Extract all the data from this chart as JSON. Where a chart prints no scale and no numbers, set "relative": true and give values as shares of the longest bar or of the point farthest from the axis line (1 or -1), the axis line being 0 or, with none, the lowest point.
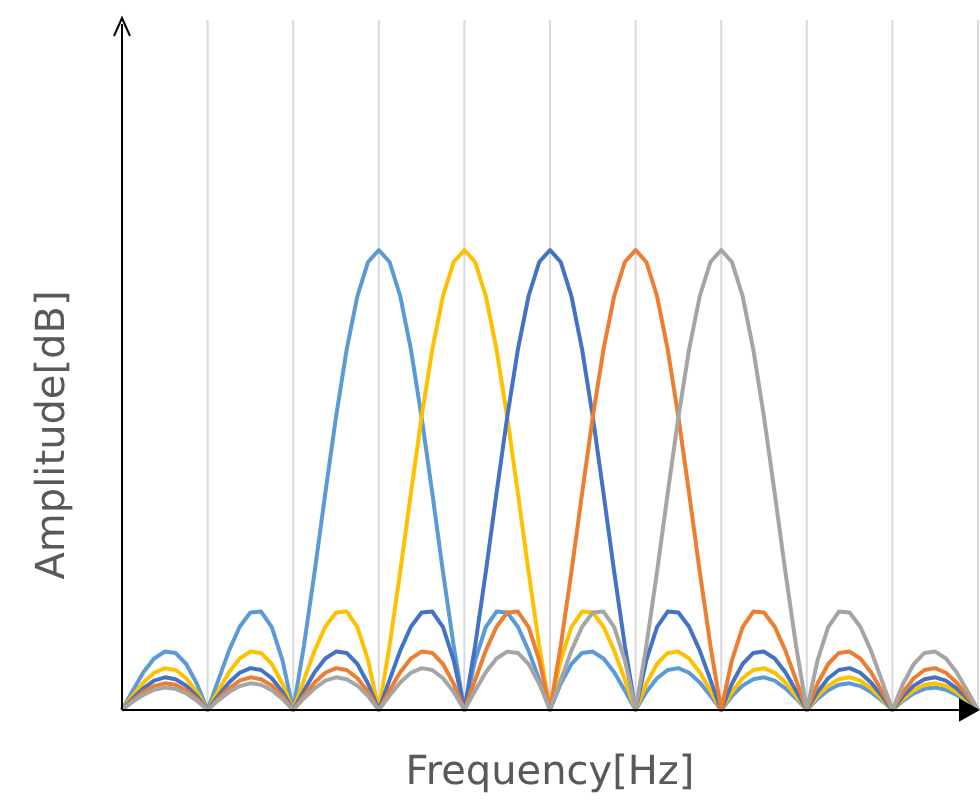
{
  "chart_data": {
    "type": "line",
    "relative": true,
    "xlabel": "Frequency[Hz]",
    "ylabel": "Amplitude[dB]",
    "categories": [
      null,
      null,
      null,
      null,
      null,
      null,
      null,
      null,
      null,
      null,
      null,
      null,
      null,
      null,
      null,
      null,
      null,
      null,
      null,
      null,
      null,
      null,
      null,
      null,
      null,
      null,
      null,
      null,
      null,
      null,
      null,
      null,
      null,
      null,
      null,
      null,
      null,
      null,
      null,
      null,
      null,
      null,
      null,
      null,
      null,
      null,
      null,
      null,
      null,
      null,
      null,
      null,
      null,
      null,
      null,
      null,
      null,
      null,
      null,
      null,
      null,
      null,
      null,
      null,
      null,
      null,
      null,
      null,
      null,
      null,
      null,
      null,
      null,
      null,
      null,
      null,
      null,
      null,
      null,
      null,
      null
    ],
    "grid": "x",
    "marker": "none",
    "line_style": "solid",
    "series": [
      {
        "color": "#5b9bd5",
        "values": [
          0,
          0.042,
          0.082,
          0.112,
          0.127,
          0.124,
          0.1,
          0.057,
          0,
          0.065,
          0.129,
          0.181,
          0.212,
          0.214,
          0.18,
          0.108,
          0,
          0.139,
          0.3,
          0.471,
          0.637,
          0.784,
          0.9,
          0.974,
          1,
          0.974,
          0.9,
          0.784,
          0.637,
          0.471,
          0.3,
          0.139,
          0,
          0.108,
          0.18,
          0.214,
          0.212,
          0.181,
          0.129,
          0.065,
          0,
          0.057,
          0.1,
          0.124,
          0.127,
          0.112,
          0.082,
          0.042,
          0,
          0.039,
          0.069,
          0.087,
          0.091,
          0.081,
          0.06,
          0.031,
          0,
          0.03,
          0.053,
          0.067,
          0.071,
          0.064,
          0.047,
          0.025,
          0,
          0.024,
          0.043,
          0.055,
          0.058,
          0.052,
          0.039,
          0.021,
          0,
          0.02,
          0.036,
          0.046,
          0.049,
          0.044,
          0.033,
          0.018,
          0
        ]
      },
      {
        "color": "#ffc000",
        "values": [
          0,
          0.031,
          0.06,
          0.081,
          0.091,
          0.087,
          0.069,
          0.039,
          0,
          0.042,
          0.082,
          0.112,
          0.127,
          0.124,
          0.1,
          0.057,
          0,
          0.065,
          0.129,
          0.181,
          0.212,
          0.214,
          0.18,
          0.108,
          0,
          0.139,
          0.3,
          0.471,
          0.637,
          0.784,
          0.9,
          0.974,
          1,
          0.974,
          0.9,
          0.784,
          0.637,
          0.471,
          0.3,
          0.139,
          0,
          0.108,
          0.18,
          0.214,
          0.212,
          0.181,
          0.129,
          0.065,
          0,
          0.057,
          0.1,
          0.124,
          0.127,
          0.112,
          0.082,
          0.042,
          0,
          0.039,
          0.069,
          0.087,
          0.091,
          0.081,
          0.06,
          0.031,
          0,
          0.03,
          0.053,
          0.067,
          0.071,
          0.064,
          0.047,
          0.025,
          0,
          0.024,
          0.043,
          0.055,
          0.058,
          0.052,
          0.039,
          0.021,
          0
        ]
      },
      {
        "color": "#4472c4",
        "values": [
          0,
          0.025,
          0.047,
          0.064,
          0.071,
          0.067,
          0.053,
          0.03,
          0,
          0.031,
          0.06,
          0.081,
          0.091,
          0.087,
          0.069,
          0.039,
          0,
          0.042,
          0.082,
          0.112,
          0.127,
          0.124,
          0.1,
          0.057,
          0,
          0.065,
          0.129,
          0.181,
          0.212,
          0.214,
          0.18,
          0.108,
          0,
          0.139,
          0.3,
          0.471,
          0.637,
          0.784,
          0.9,
          0.974,
          1,
          0.974,
          0.9,
          0.784,
          0.637,
          0.471,
          0.3,
          0.139,
          0,
          0.108,
          0.18,
          0.214,
          0.212,
          0.181,
          0.129,
          0.065,
          0,
          0.057,
          0.1,
          0.124,
          0.127,
          0.112,
          0.082,
          0.042,
          0,
          0.039,
          0.069,
          0.087,
          0.091,
          0.081,
          0.06,
          0.031,
          0,
          0.03,
          0.053,
          0.067,
          0.071,
          0.064,
          0.047,
          0.025,
          0
        ]
      },
      {
        "color": "#ed7d31",
        "values": [
          0,
          0.021,
          0.039,
          0.052,
          0.058,
          0.055,
          0.043,
          0.024,
          0,
          0.025,
          0.047,
          0.064,
          0.071,
          0.067,
          0.053,
          0.03,
          0,
          0.031,
          0.06,
          0.081,
          0.091,
          0.087,
          0.069,
          0.039,
          0,
          0.042,
          0.082,
          0.112,
          0.127,
          0.124,
          0.1,
          0.057,
          0,
          0.065,
          0.129,
          0.181,
          0.212,
          0.214,
          0.18,
          0.108,
          0,
          0.139,
          0.3,
          0.471,
          0.637,
          0.784,
          0.9,
          0.974,
          1,
          0.974,
          0.9,
          0.784,
          0.637,
          0.471,
          0.3,
          0.139,
          0,
          0.108,
          0.18,
          0.214,
          0.212,
          0.181,
          0.129,
          0.065,
          0,
          0.057,
          0.1,
          0.124,
          0.127,
          0.112,
          0.082,
          0.042,
          0,
          0.039,
          0.069,
          0.087,
          0.091,
          0.081,
          0.06,
          0.031,
          0
        ]
      },
      {
        "color": "#a5a5a5",
        "values": [
          0,
          0.018,
          0.033,
          0.044,
          0.049,
          0.046,
          0.036,
          0.02,
          0,
          0.021,
          0.039,
          0.052,
          0.058,
          0.055,
          0.043,
          0.024,
          0,
          0.025,
          0.047,
          0.064,
          0.071,
          0.067,
          0.053,
          0.03,
          0,
          0.031,
          0.06,
          0.081,
          0.091,
          0.087,
          0.069,
          0.039,
          0,
          0.042,
          0.082,
          0.112,
          0.127,
          0.124,
          0.1,
          0.057,
          0,
          0.065,
          0.129,
          0.181,
          0.212,
          0.214,
          0.18,
          0.108,
          0,
          0.139,
          0.3,
          0.471,
          0.637,
          0.784,
          0.9,
          0.974,
          1,
          0.974,
          0.9,
          0.784,
          0.637,
          0.471,
          0.3,
          0.139,
          0,
          0.108,
          0.18,
          0.214,
          0.212,
          0.181,
          0.129,
          0.065,
          0,
          0.057,
          0.1,
          0.124,
          0.127,
          0.112,
          0.082,
          0.042,
          0
        ]
      }
    ]
  }
}
